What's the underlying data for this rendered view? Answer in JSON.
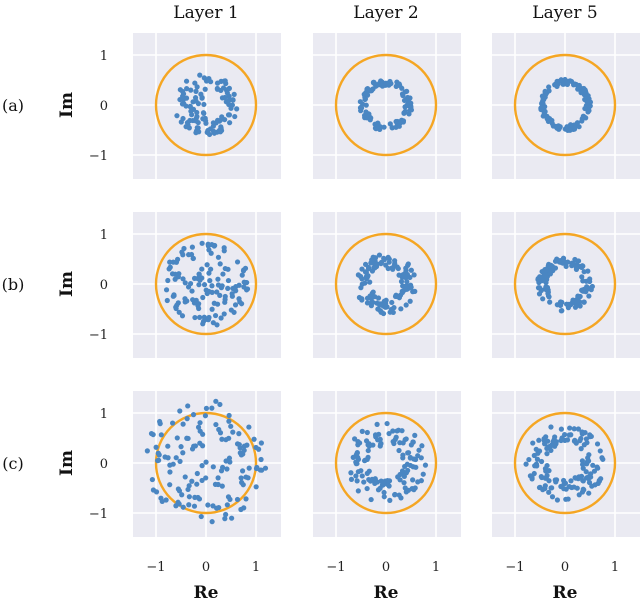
{
  "figure": {
    "column_titles": [
      "Layer 1",
      "Layer 2",
      "Layer 5"
    ],
    "row_labels": [
      "(a)",
      "(b)",
      "(c)"
    ],
    "xlabel": "Re",
    "ylabel": "Im",
    "xtick_labels": [
      "−1",
      "0",
      "1"
    ],
    "ytick_labels": [
      "1",
      "0",
      "−1"
    ]
  },
  "colors": {
    "background": "#eaeaf2",
    "grid": "#ffffff",
    "points": "#4a86c2",
    "unit_circle": "#f5a623"
  },
  "chart_data": [
    {
      "type": "scatter",
      "row": "(a)",
      "column": "Layer 1",
      "xlim": [
        -1.05,
        1.45
      ],
      "ylim": [
        -1.45,
        1.05
      ],
      "grid": true,
      "reference": "unit circle",
      "distribution": {
        "shape": "crescent_disk",
        "r_min": 0.0,
        "r_max": 0.62,
        "n": 110
      }
    },
    {
      "type": "scatter",
      "row": "(a)",
      "column": "Layer 2",
      "xlim": [
        -1.05,
        1.45
      ],
      "ylim": [
        -1.45,
        1.05
      ],
      "grid": true,
      "reference": "unit circle",
      "distribution": {
        "shape": "ring",
        "r_min": 0.38,
        "r_max": 0.52,
        "n": 110
      }
    },
    {
      "type": "scatter",
      "row": "(a)",
      "column": "Layer 5",
      "xlim": [
        -1.05,
        1.45
      ],
      "ylim": [
        -1.45,
        1.05
      ],
      "grid": true,
      "reference": "unit circle",
      "distribution": {
        "shape": "ring",
        "r_min": 0.4,
        "r_max": 0.52,
        "n": 110
      }
    },
    {
      "type": "scatter",
      "row": "(b)",
      "column": "Layer 1",
      "xlim": [
        -1.05,
        1.45
      ],
      "ylim": [
        -1.45,
        1.05
      ],
      "grid": true,
      "reference": "unit circle",
      "distribution": {
        "shape": "disk",
        "r_min": 0.0,
        "r_max": 0.85,
        "n": 130
      }
    },
    {
      "type": "scatter",
      "row": "(b)",
      "column": "Layer 2",
      "xlim": [
        -1.05,
        1.45
      ],
      "ylim": [
        -1.45,
        1.05
      ],
      "grid": true,
      "reference": "unit circle",
      "distribution": {
        "shape": "ring",
        "r_min": 0.3,
        "r_max": 0.6,
        "n": 120
      }
    },
    {
      "type": "scatter",
      "row": "(b)",
      "column": "Layer 5",
      "xlim": [
        -1.05,
        1.45
      ],
      "ylim": [
        -1.45,
        1.05
      ],
      "grid": true,
      "reference": "unit circle",
      "distribution": {
        "shape": "ring",
        "r_min": 0.35,
        "r_max": 0.55,
        "n": 120
      }
    },
    {
      "type": "scatter",
      "row": "(c)",
      "column": "Layer 1",
      "xlim": [
        -1.25,
        1.45
      ],
      "ylim": [
        -1.45,
        1.25
      ],
      "grid": true,
      "reference": "unit circle",
      "distribution": {
        "shape": "disk",
        "r_min": 0.0,
        "r_max": 1.25,
        "n": 140
      }
    },
    {
      "type": "scatter",
      "row": "(c)",
      "column": "Layer 2",
      "xlim": [
        -1.05,
        1.45
      ],
      "ylim": [
        -1.45,
        1.05
      ],
      "grid": true,
      "reference": "unit circle",
      "distribution": {
        "shape": "ring",
        "r_min": 0.35,
        "r_max": 0.8,
        "n": 130
      }
    },
    {
      "type": "scatter",
      "row": "(c)",
      "column": "Layer 5",
      "xlim": [
        -1.05,
        1.45
      ],
      "ylim": [
        -1.45,
        1.05
      ],
      "grid": true,
      "reference": "unit circle",
      "distribution": {
        "shape": "ring",
        "r_min": 0.35,
        "r_max": 0.78,
        "n": 140
      }
    }
  ]
}
